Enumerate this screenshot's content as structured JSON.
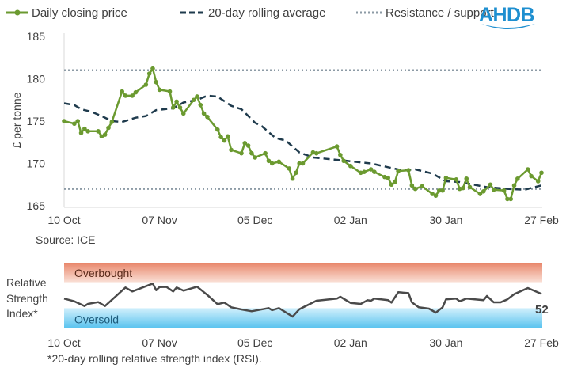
{
  "logo": {
    "text": "AHDB",
    "color": "#1e8fd0"
  },
  "colors": {
    "price": "#6b9a30",
    "rolling": "#1f3b4d",
    "levels": "#8d9ba6",
    "overbought_top": "#e8866a",
    "overbought_bottom": "#fae0d6",
    "oversold_top": "#d2f0fc",
    "oversold_bottom": "#5cc4ef",
    "rsi": "#4a4a4a"
  },
  "source": "Source: ICE",
  "footnote": "*20-day rolling relative strength index (RSI).",
  "chart_data": [
    {
      "type": "line",
      "ylabel": "£ per tonne",
      "ylim": [
        165,
        185
      ],
      "yticks": [
        "185",
        "180",
        "175",
        "170",
        "165"
      ],
      "xticks": [
        "10 Oct",
        "07 Nov",
        "05 Dec",
        "02 Jan",
        "30 Jan",
        "27 Feb"
      ],
      "legend": [
        "Daily closing price",
        "20-day rolling average",
        "Resistance / support"
      ],
      "legend_placement": "top",
      "grid": false,
      "levels": {
        "resistance": 181,
        "support": 167
      },
      "series": [
        {
          "name": "Daily closing price",
          "style": "solid-markers",
          "points": [
            [
              "10 Oct",
              175.0
            ],
            [
              "13 Oct",
              174.7
            ],
            [
              "14 Oct",
              175.0
            ],
            [
              "15 Oct",
              173.6
            ],
            [
              "16 Oct",
              174.1
            ],
            [
              "17 Oct",
              173.8
            ],
            [
              "20 Oct",
              173.8
            ],
            [
              "21 Oct",
              173.2
            ],
            [
              "22 Oct",
              173.4
            ],
            [
              "23 Oct",
              174.2
            ],
            [
              "24 Oct",
              174.9
            ],
            [
              "27 Oct",
              178.5
            ],
            [
              "28 Oct",
              178.0
            ],
            [
              "30 Oct",
              178.0
            ],
            [
              "31 Oct",
              178.4
            ],
            [
              "3 Nov",
              179.3
            ],
            [
              "4 Nov",
              180.6
            ],
            [
              "5 Nov",
              181.2
            ],
            [
              "6 Nov",
              179.6
            ],
            [
              "7 Nov",
              178.7
            ],
            [
              "10 Nov",
              178.5
            ],
            [
              "11 Nov",
              176.6
            ],
            [
              "12 Nov",
              177.3
            ],
            [
              "13 Nov",
              176.6
            ],
            [
              "14 Nov",
              175.9
            ],
            [
              "17 Nov",
              177.5
            ],
            [
              "18 Nov",
              177.9
            ],
            [
              "19 Nov",
              176.9
            ],
            [
              "20 Nov",
              175.9
            ],
            [
              "21 Nov",
              175.5
            ],
            [
              "24 Nov",
              174.0
            ],
            [
              "25 Nov",
              173.1
            ],
            [
              "26 Nov",
              172.7
            ],
            [
              "27 Nov",
              173.2
            ],
            [
              "28 Nov",
              171.6
            ],
            [
              "1 Dec",
              171.2
            ],
            [
              "2 Dec",
              172.4
            ],
            [
              "3 Dec",
              172.1
            ],
            [
              "4 Dec",
              171.2
            ],
            [
              "5 Dec",
              170.7
            ],
            [
              "8 Dec",
              171.2
            ],
            [
              "9 Dec",
              170.3
            ],
            [
              "10 Dec",
              170.0
            ],
            [
              "12 Dec",
              170.2
            ],
            [
              "15 Dec",
              169.4
            ],
            [
              "16 Dec",
              168.2
            ],
            [
              "17 Dec",
              168.9
            ],
            [
              "18 Dec",
              170.0
            ],
            [
              "19 Dec",
              170.0
            ],
            [
              "22 Dec",
              171.3
            ],
            [
              "23 Dec",
              171.2
            ],
            [
              "29 Dec",
              172.0
            ],
            [
              "30 Dec",
              171.0
            ],
            [
              "31 Dec",
              170.3
            ],
            [
              "2 Jan",
              169.7
            ],
            [
              "5 Jan",
              168.9
            ],
            [
              "6 Jan",
              169.0
            ],
            [
              "8 Jan",
              169.3
            ],
            [
              "9 Jan",
              169.0
            ],
            [
              "12 Jan",
              168.4
            ],
            [
              "13 Jan",
              168.3
            ],
            [
              "14 Jan",
              167.5
            ],
            [
              "15 Jan",
              167.8
            ],
            [
              "16 Jan",
              169.1
            ],
            [
              "19 Jan",
              169.2
            ],
            [
              "20 Jan",
              167.4
            ],
            [
              "21 Jan",
              167.0
            ],
            [
              "23 Jan",
              167.3
            ],
            [
              "26 Jan",
              166.4
            ],
            [
              "27 Jan",
              166.2
            ],
            [
              "28 Jan",
              166.8
            ],
            [
              "29 Jan",
              166.8
            ],
            [
              "30 Jan",
              168.3
            ],
            [
              "2 Feb",
              168.1
            ],
            [
              "3 Feb",
              167.0
            ],
            [
              "4 Feb",
              167.1
            ],
            [
              "5 Feb",
              168.2
            ],
            [
              "6 Feb",
              167.2
            ],
            [
              "9 Feb",
              166.4
            ],
            [
              "10 Feb",
              166.7
            ],
            [
              "12 Feb",
              167.5
            ],
            [
              "13 Feb",
              166.9
            ],
            [
              "16 Feb",
              166.8
            ],
            [
              "17 Feb",
              165.8
            ],
            [
              "18 Feb",
              165.8
            ],
            [
              "19 Feb",
              167.4
            ],
            [
              "20 Feb",
              168.2
            ],
            [
              "23 Feb",
              169.3
            ],
            [
              "24 Feb",
              168.5
            ],
            [
              "26 Feb",
              167.9
            ],
            [
              "27 Feb",
              168.9
            ]
          ]
        },
        {
          "name": "20-day rolling average",
          "style": "dashed",
          "points": [
            [
              "10 Oct",
              177.1
            ],
            [
              "13 Oct",
              176.9
            ],
            [
              "15 Oct",
              176.4
            ],
            [
              "18 Oct",
              176.1
            ],
            [
              "21 Oct",
              175.6
            ],
            [
              "24 Oct",
              175.0
            ],
            [
              "27 Oct",
              174.9
            ],
            [
              "31 Oct",
              175.4
            ],
            [
              "3 Nov",
              175.6
            ],
            [
              "6 Nov",
              176.3
            ],
            [
              "11 Nov",
              176.5
            ],
            [
              "14 Nov",
              177.2
            ],
            [
              "18 Nov",
              177.5
            ],
            [
              "21 Nov",
              178.0
            ],
            [
              "24 Nov",
              177.9
            ],
            [
              "28 Nov",
              176.8
            ],
            [
              "1 Dec",
              176.4
            ],
            [
              "5 Dec",
              174.8
            ],
            [
              "7 Dec",
              174.4
            ],
            [
              "11 Dec",
              173.0
            ],
            [
              "14 Dec",
              172.7
            ],
            [
              "18 Dec",
              171.3
            ],
            [
              "22 Dec",
              170.7
            ],
            [
              "1 Jan",
              170.3
            ],
            [
              "8 Jan",
              170.0
            ],
            [
              "17 Jan",
              169.2
            ],
            [
              "21 Jan",
              169.3
            ],
            [
              "26 Jan",
              168.8
            ],
            [
              "30 Jan",
              167.9
            ],
            [
              "3 Feb",
              167.8
            ],
            [
              "11 Feb",
              167.2
            ],
            [
              "17 Feb",
              167.0
            ],
            [
              "22 Feb",
              166.9
            ],
            [
              "27 Feb",
              167.4
            ]
          ]
        }
      ]
    },
    {
      "type": "line",
      "ylabel": "Relative Strength Index*",
      "ylim": [
        0,
        100
      ],
      "xticks": [
        "10 Oct",
        "07 Nov",
        "05 Dec",
        "02 Jan",
        "30 Jan",
        "27 Feb"
      ],
      "bands": [
        {
          "label": "Overbought",
          "range": [
            70,
            100
          ]
        },
        {
          "label": "Oversold",
          "range": [
            0,
            30
          ]
        }
      ],
      "last_value_label": "52",
      "series": [
        {
          "points": [
            [
              "10 Oct",
              44.8
            ],
            [
              "13 Oct",
              40.6
            ],
            [
              "16 Oct",
              33.3
            ],
            [
              "17 Oct",
              36.6
            ],
            [
              "20 Oct",
              39.4
            ],
            [
              "22 Oct",
              33.3
            ],
            [
              "28 Oct",
              61.8
            ],
            [
              "30 Oct",
              55.7
            ],
            [
              "2 Nov",
              61.8
            ],
            [
              "5 Nov",
              67.9
            ],
            [
              "6 Nov",
              57.7
            ],
            [
              "7 Nov",
              62.6
            ],
            [
              "9 Nov",
              62.8
            ],
            [
              "11 Nov",
              55.7
            ],
            [
              "12 Nov",
              61.8
            ],
            [
              "14 Nov",
              57.0
            ],
            [
              "18 Nov",
              63.0
            ],
            [
              "21 Nov",
              50.4
            ],
            [
              "24 Nov",
              36.2
            ],
            [
              "26 Nov",
              38.6
            ],
            [
              "28 Nov",
              31.3
            ],
            [
              "1 Dec",
              28.0
            ],
            [
              "4 Dec",
              25.2
            ],
            [
              "9 Dec",
              30.1
            ],
            [
              "10 Dec",
              27.0
            ],
            [
              "12 Dec",
              30.1
            ],
            [
              "16 Dec",
              17.0
            ],
            [
              "18 Dec",
              28.4
            ],
            [
              "23 Dec",
              41.5
            ],
            [
              "29 Dec",
              44.8
            ],
            [
              "30 Dec",
              47.6
            ],
            [
              "2 Jan",
              38.2
            ],
            [
              "5 Jan",
              36.6
            ],
            [
              "7 Jan",
              42.3
            ],
            [
              "8 Jan",
              41.5
            ],
            [
              "9 Jan",
              44.8
            ],
            [
              "13 Jan",
              42.3
            ],
            [
              "14 Jan",
              38.6
            ],
            [
              "16 Jan",
              54.5
            ],
            [
              "19 Jan",
              53.2
            ],
            [
              "20 Jan",
              39.0
            ],
            [
              "22 Jan",
              31.3
            ],
            [
              "25 Jan",
              29.3
            ],
            [
              "27 Jan",
              23.2
            ],
            [
              "29 Jan",
              31.3
            ],
            [
              "30 Jan",
              43.5
            ],
            [
              "2 Feb",
              44.8
            ],
            [
              "3 Feb",
              40.6
            ],
            [
              "5 Feb",
              44.8
            ],
            [
              "10 Feb",
              42.3
            ],
            [
              "11 Feb",
              48.8
            ],
            [
              "13 Feb",
              39.0
            ],
            [
              "15 Feb",
              39.0
            ],
            [
              "17 Feb",
              43.5
            ],
            [
              "19 Feb",
              51.6
            ],
            [
              "23 Feb",
              61.0
            ],
            [
              "27 Feb",
              52.0
            ]
          ]
        }
      ]
    }
  ]
}
